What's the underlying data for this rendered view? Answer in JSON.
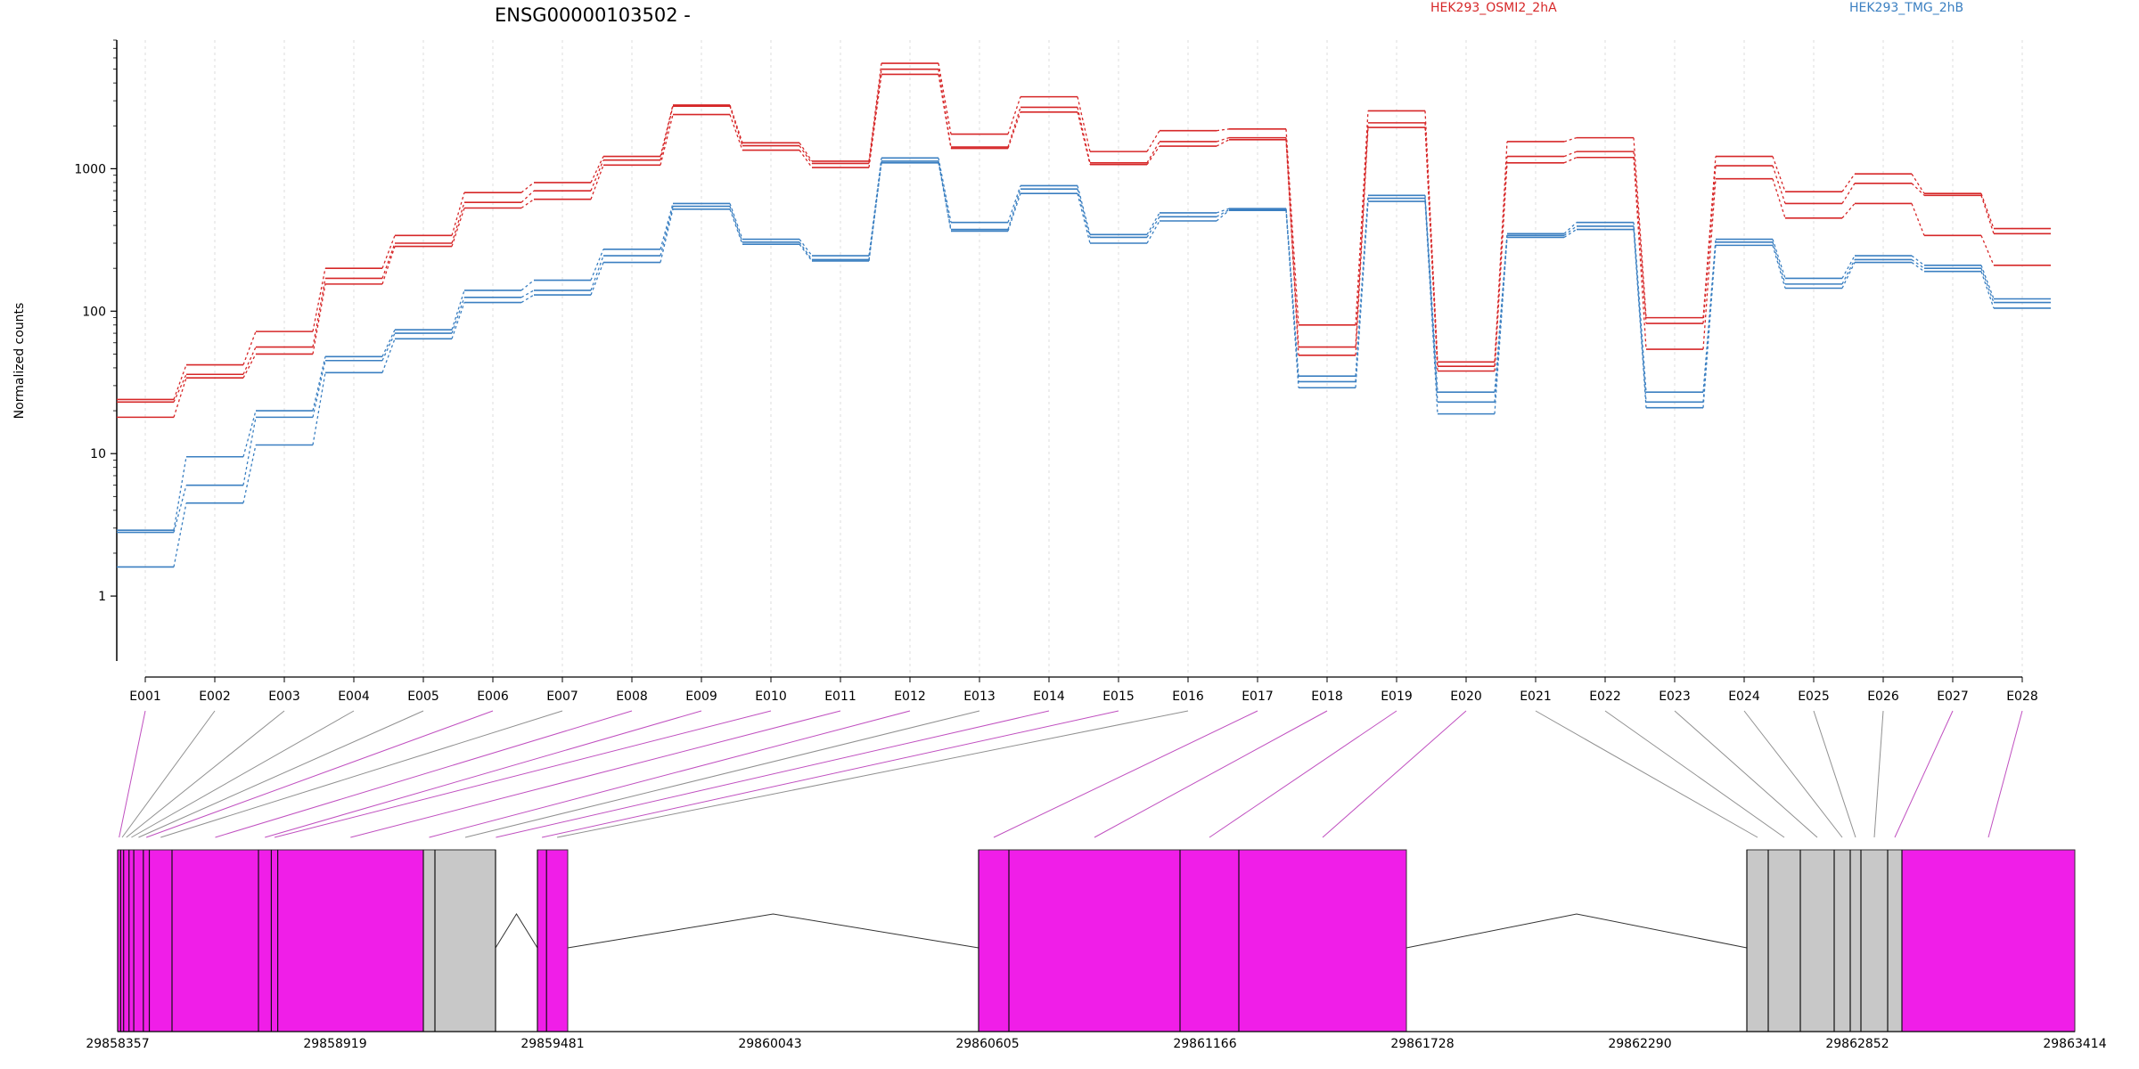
{
  "colors": {
    "condition_a": "#d62728",
    "condition_b": "#3a7fc1",
    "exon_tested": "#f01ee8",
    "exon_other": "#c8c8c8",
    "connector_tested": "#c050c0",
    "connector_other": "#909090"
  },
  "chart_data": {
    "type": "line",
    "title": "ENSG00000103502 -",
    "ylabel": "Normalized counts",
    "yscale": "log",
    "ylim": [
      0.35,
      8000
    ],
    "yticks": [
      1,
      10,
      100,
      1000
    ],
    "ytick_labels": [
      "1",
      "10",
      "100",
      "1000"
    ],
    "grid": "vertical dotted",
    "legend_placement": "top",
    "categories": [
      "E001",
      "E002",
      "E003",
      "E004",
      "E005",
      "E006",
      "E007",
      "E008",
      "E009",
      "E010",
      "E011",
      "E012",
      "E013",
      "E014",
      "E015",
      "E016",
      "E017",
      "E018",
      "E019",
      "E020",
      "E021",
      "E022",
      "E023",
      "E024",
      "E025",
      "E026",
      "E027",
      "E028"
    ],
    "legend": [
      {
        "name": "HEK293_OSMI2_2hA",
        "color": "#d62728"
      },
      {
        "name": "HEK293_TMG_2hB",
        "color": "#3a7fc1"
      }
    ],
    "series": [
      {
        "group": "HEK293_OSMI2_2hA",
        "values": [
          24,
          42,
          72,
          200,
          340,
          680,
          800,
          1220,
          2800,
          1520,
          1130,
          5500,
          1750,
          3200,
          1320,
          1850,
          1900,
          80,
          2550,
          44,
          1550,
          1650,
          90,
          1220,
          690,
          920,
          670,
          380
        ]
      },
      {
        "group": "HEK293_OSMI2_2hA",
        "values": [
          23,
          36,
          56,
          170,
          300,
          580,
          700,
          1150,
          2750,
          1450,
          1090,
          5000,
          1420,
          2700,
          1100,
          1550,
          1650,
          56,
          2100,
          41,
          1220,
          1320,
          82,
          1050,
          570,
          790,
          650,
          350
        ]
      },
      {
        "group": "HEK293_OSMI2_2hA",
        "values": [
          18,
          34,
          50,
          155,
          285,
          530,
          610,
          1060,
          2400,
          1350,
          1020,
          4600,
          1390,
          2500,
          1070,
          1440,
          1600,
          49,
          1950,
          38,
          1100,
          1200,
          54,
          850,
          450,
          570,
          340,
          210
        ]
      },
      {
        "group": "HEK293_TMG_2hB",
        "values": [
          2.9,
          9.5,
          20,
          48,
          74,
          140,
          165,
          272,
          570,
          320,
          245,
          1190,
          420,
          760,
          345,
          490,
          525,
          35,
          650,
          27,
          350,
          420,
          27,
          320,
          170,
          245,
          210,
          122
        ]
      },
      {
        "group": "HEK293_TMG_2hB",
        "values": [
          2.8,
          6.0,
          18,
          45,
          70,
          125,
          140,
          245,
          545,
          305,
          230,
          1130,
          375,
          720,
          330,
          460,
          515,
          32,
          620,
          23,
          340,
          395,
          23,
          305,
          155,
          230,
          200,
          115
        ]
      },
      {
        "group": "HEK293_TMG_2hB",
        "values": [
          1.6,
          4.5,
          11.5,
          37,
          64,
          115,
          130,
          220,
          520,
          295,
          225,
          1100,
          365,
          670,
          300,
          430,
          510,
          29,
          590,
          19,
          330,
          375,
          21,
          290,
          145,
          220,
          190,
          105
        ]
      }
    ],
    "exon_tested": [
      true,
      false,
      false,
      false,
      false,
      true,
      false,
      true,
      true,
      true,
      true,
      true,
      false,
      true,
      true,
      false,
      true,
      true,
      true,
      true,
      false,
      false,
      false,
      false,
      false,
      false,
      true,
      true
    ]
  },
  "gene_model": {
    "coordinate_labels": [
      "29858357",
      "29858919",
      "29859481",
      "29860043",
      "29860605",
      "29861166",
      "29861728",
      "29862290",
      "29862852",
      "29863414"
    ]
  }
}
